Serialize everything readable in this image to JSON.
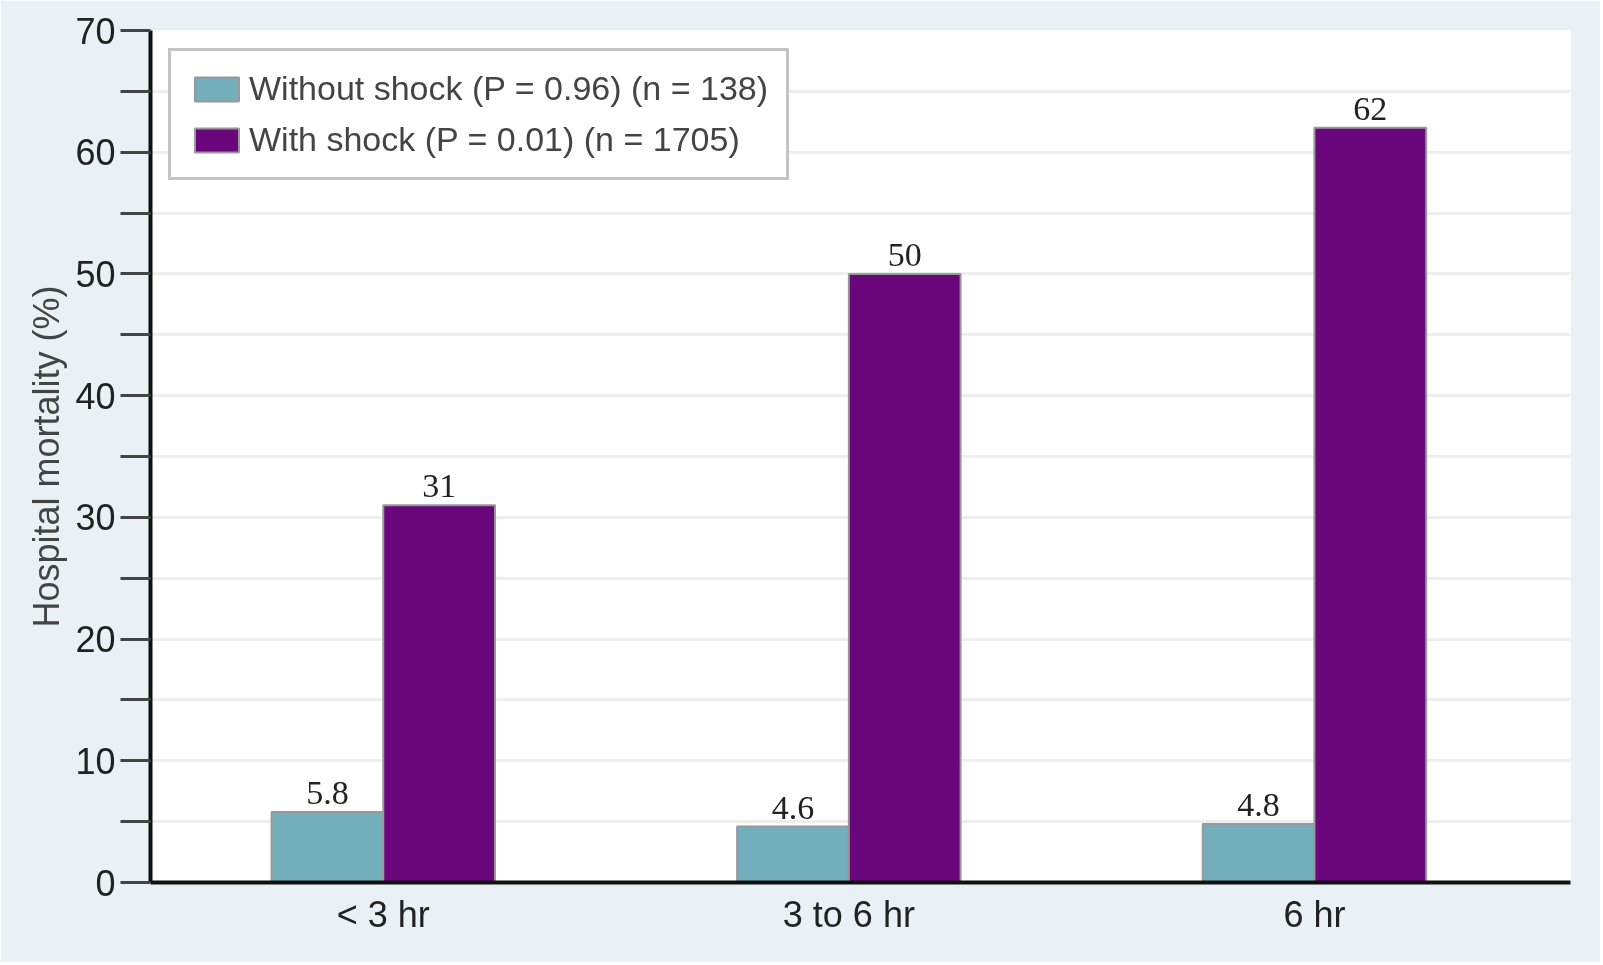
{
  "chart_data": {
    "type": "bar",
    "ylabel": "Hospital mortality (%)",
    "categories": [
      "< 3 hr",
      "3 to 6 hr",
      "6 hr"
    ],
    "series": [
      {
        "name": "Without shock (P = 0.96) (n = 138)",
        "color": "#72aebb",
        "values": [
          5.8,
          4.6,
          4.8
        ]
      },
      {
        "name": "With shock (P = 0.01) (n = 1705)",
        "color": "#6a077c",
        "values": [
          31,
          50,
          62
        ]
      }
    ],
    "ylim": [
      0,
      70
    ],
    "yticks": [
      0,
      {
        "value": 5,
        "label": null
      },
      10,
      {
        "value": 15,
        "label": null
      },
      20,
      {
        "value": 25,
        "label": null
      },
      30,
      {
        "value": 35,
        "label": null
      },
      40,
      {
        "value": 45,
        "label": null
      },
      50,
      {
        "value": 55,
        "label": null
      },
      60,
      {
        "value": 65,
        "label": null
      },
      70
    ],
    "grid": "y",
    "legend": "top left",
    "data_labels": true
  }
}
